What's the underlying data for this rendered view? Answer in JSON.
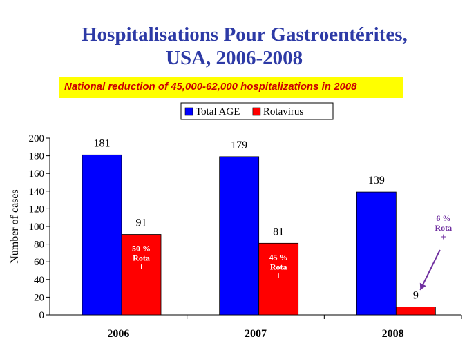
{
  "slide": {
    "title_line1": "Hospitalisations Pour Gastroentérites,",
    "title_line2": "USA, 2006-2008",
    "banner": "National reduction of 45,000-62,000 hospitalizations in 2008"
  },
  "chart_data": {
    "type": "bar",
    "categories": [
      "2006",
      "2007",
      "2008"
    ],
    "series": [
      {
        "name": "Total AGE",
        "values": [
          181,
          179,
          139
        ],
        "color": "#0000ff"
      },
      {
        "name": "Rotavirus",
        "values": [
          91,
          81,
          9
        ],
        "color": "#ff0000"
      }
    ],
    "ylabel": "Number of cases",
    "ylim": [
      0,
      200
    ],
    "yticks": [
      0,
      20,
      40,
      60,
      80,
      100,
      120,
      140,
      160,
      180,
      200
    ],
    "legend_position": "top",
    "grid": false,
    "annotations": [
      {
        "category": "2006",
        "text_lines": [
          "50 %",
          "Rota",
          "+"
        ],
        "placement": "inside-bar",
        "color": "#ffffff"
      },
      {
        "category": "2007",
        "text_lines": [
          "45 %",
          "Rota",
          "+"
        ],
        "placement": "inside-bar",
        "color": "#ffffff"
      },
      {
        "category": "2008",
        "text_lines": [
          "6 %",
          "Rota",
          "+"
        ],
        "placement": "above-arrow",
        "color": "#7030a0"
      }
    ]
  }
}
